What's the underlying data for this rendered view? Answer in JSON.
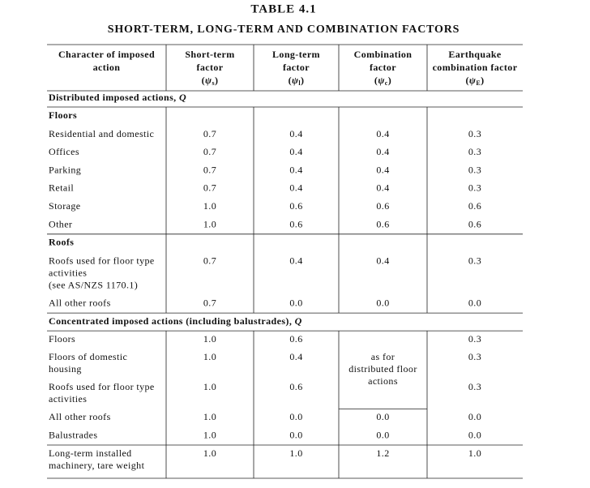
{
  "header": {
    "title": "TABLE 4.1",
    "subtitle": "SHORT-TERM, LONG-TERM AND COMBINATION FACTORS"
  },
  "table": {
    "columns": [
      {
        "lines": [
          "Character of imposed",
          "action"
        ]
      },
      {
        "lines": [
          "Short-term",
          "factor"
        ],
        "symbol": {
          "open": "(",
          "base": "ψ",
          "sub": "s",
          "close": ")"
        }
      },
      {
        "lines": [
          "Long-term",
          "factor"
        ],
        "symbol": {
          "open": "(",
          "base": "ψ",
          "sub": "l",
          "close": ")"
        }
      },
      {
        "lines": [
          "Combination",
          "factor"
        ],
        "symbol": {
          "open": "(",
          "base": "ψ",
          "sub": "c",
          "close": ")"
        }
      },
      {
        "lines": [
          "Earthquake",
          "combination factor"
        ],
        "symbol": {
          "open": "(",
          "base": "ψ",
          "sub": "E",
          "close": ")"
        }
      }
    ],
    "sections": [
      {
        "title": "Distributed imposed actions, ",
        "title_var": "Q",
        "groups": [
          {
            "name": "Floors",
            "rows": [
              {
                "label": [
                  "Residential and domestic"
                ],
                "short": "0.7",
                "long": "0.4",
                "combination": "0.4",
                "earthquake": "0.3"
              },
              {
                "label": [
                  "Offices"
                ],
                "short": "0.7",
                "long": "0.4",
                "combination": "0.4",
                "earthquake": "0.3"
              },
              {
                "label": [
                  "Parking"
                ],
                "short": "0.7",
                "long": "0.4",
                "combination": "0.4",
                "earthquake": "0.3"
              },
              {
                "label": [
                  "Retail"
                ],
                "short": "0.7",
                "long": "0.4",
                "combination": "0.4",
                "earthquake": "0.3"
              },
              {
                "label": [
                  "Storage"
                ],
                "short": "1.0",
                "long": "0.6",
                "combination": "0.6",
                "earthquake": "0.6"
              },
              {
                "label": [
                  "Other"
                ],
                "short": "1.0",
                "long": "0.6",
                "combination": "0.6",
                "earthquake": "0.6"
              }
            ]
          },
          {
            "name": "Roofs",
            "rows": [
              {
                "label": [
                  "Roofs used for floor type",
                  "activities",
                  "(see AS/NZS 1170.1)"
                ],
                "short": "0.7",
                "long": "0.4",
                "combination": "0.4",
                "earthquake": "0.3"
              },
              {
                "label": [
                  "All other roofs"
                ],
                "short": "0.7",
                "long": "0.0",
                "combination": "0.0",
                "earthquake": "0.0"
              }
            ]
          }
        ]
      },
      {
        "title": "Concentrated imposed actions (including balustrades), ",
        "title_var": "Q",
        "merged_combination": [
          "as for",
          "distributed floor",
          "actions"
        ],
        "groups": [
          {
            "rows": [
              {
                "label": [
                  "Floors"
                ],
                "short": "1.0",
                "long": "0.6",
                "earthquake": "0.3"
              },
              {
                "label": [
                  "Floors of domestic",
                  "housing"
                ],
                "short": "1.0",
                "long": "0.4",
                "earthquake": "0.3"
              },
              {
                "label": [
                  "Roofs used for floor type",
                  "activities"
                ],
                "short": "1.0",
                "long": "0.6",
                "earthquake": "0.3"
              },
              {
                "label": [
                  "All other roofs"
                ],
                "short": "1.0",
                "long": "0.0",
                "combination": "0.0",
                "earthquake": "0.0"
              },
              {
                "label": [
                  "Balustrades"
                ],
                "short": "1.0",
                "long": "0.0",
                "combination": "0.0",
                "earthquake": "0.0"
              },
              {
                "label": [
                  "Long-term installed",
                  "machinery, tare weight"
                ],
                "short": "1.0",
                "long": "1.0",
                "combination": "1.2",
                "earthquake": "1.0"
              }
            ]
          }
        ]
      }
    ]
  }
}
